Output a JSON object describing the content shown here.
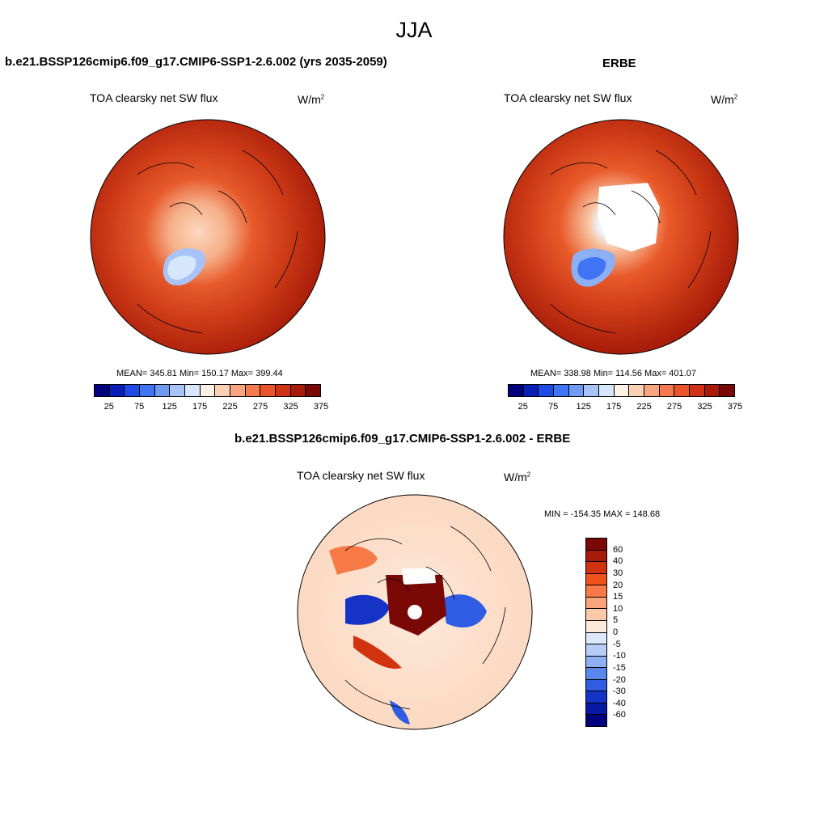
{
  "title": "JJA",
  "panels": [
    {
      "title": "b.e21.BSSP126cmip6.f09_g17.CMIP6-SSP1-2.6.002 (yrs 2035-2059)",
      "variable": "TOA clearsky net SW flux",
      "units": "W/m",
      "units_exp": "2",
      "stats": "MEAN= 345.81  Min= 150.17  Max= 399.44"
    },
    {
      "title": "ERBE",
      "variable": "TOA clearsky net SW flux",
      "units": "W/m",
      "units_exp": "2",
      "stats": "MEAN= 338.98  Min= 114.56  Max= 401.07"
    },
    {
      "title": "b.e21.BSSP126cmip6.f09_g17.CMIP6-SSP1-2.6.002 - ERBE",
      "variable": "TOA clearsky net SW flux",
      "units": "W/m",
      "units_exp": "2",
      "stats": "MIN = -154.35 MAX = 148.68"
    }
  ],
  "colorbar_abs": {
    "colors": [
      "#00007f",
      "#0a1fb8",
      "#1e4be6",
      "#3f74f5",
      "#6e9cf5",
      "#a8c3f7",
      "#d6e6fb",
      "#fdf0e4",
      "#fbd1b6",
      "#f8a57f",
      "#f57a4f",
      "#e9542a",
      "#cf3316",
      "#a81a0a",
      "#7a0805"
    ],
    "tick_labels": [
      "25",
      "75",
      "125",
      "175",
      "225",
      "275",
      "325",
      "375"
    ]
  },
  "colorbar_diff": {
    "colors": [
      "#7a0805",
      "#a81a0a",
      "#d2320f",
      "#f0521e",
      "#f77a47",
      "#f9a47a",
      "#fccaa8",
      "#fde9da",
      "#dce8fb",
      "#b6cdf7",
      "#8daff3",
      "#5a87ee",
      "#2f5ce3",
      "#1533c7",
      "#0618a4",
      "#00007f"
    ],
    "tick_labels": [
      "60",
      "40",
      "30",
      "20",
      "15",
      "10",
      "5",
      "0",
      "-5",
      "-10",
      "-15",
      "-20",
      "-30",
      "-40",
      "-60"
    ]
  }
}
